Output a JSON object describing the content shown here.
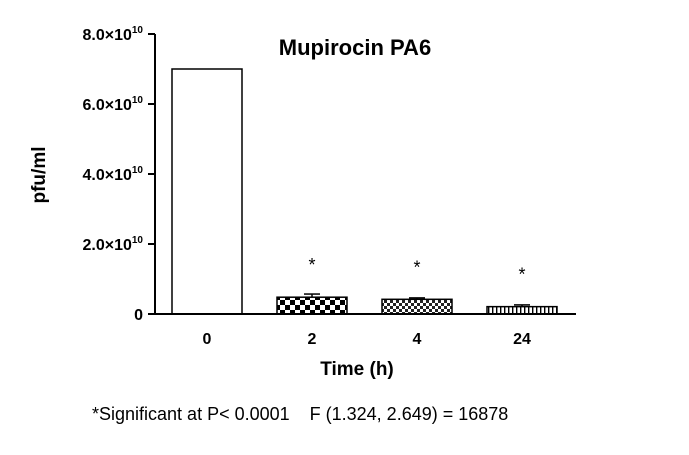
{
  "chart_data": {
    "type": "bar",
    "title": "Mupirocin PA6",
    "xlabel": "Time (h)",
    "ylabel": "pfu/ml",
    "ylim": [
      0,
      80000000000.0
    ],
    "yticks": [
      {
        "value": 0,
        "label": "0",
        "exp": ""
      },
      {
        "value": 20000000000.0,
        "label": "2.0×10",
        "exp": "10"
      },
      {
        "value": 40000000000.0,
        "label": "4.0×10",
        "exp": "10"
      },
      {
        "value": 60000000000.0,
        "label": "6.0×10",
        "exp": "10"
      },
      {
        "value": 80000000000.0,
        "label": "8.0×10",
        "exp": "10"
      }
    ],
    "categories": [
      "0",
      "2",
      "4",
      "24"
    ],
    "values": [
      70000000000.0,
      4800000000.0,
      4200000000.0,
      2100000000.0
    ],
    "errors": [
      0,
      900000000.0,
      400000000.0,
      500000000.0
    ],
    "significance": [
      "",
      "*",
      "*",
      "*"
    ],
    "patterns": [
      "none",
      "checker",
      "dense-checker",
      "vertical-stripes"
    ],
    "grid": false,
    "legend": "none"
  },
  "footnote": "*Significant at P< 0.0001    F (1.324, 2.649) = 16878"
}
